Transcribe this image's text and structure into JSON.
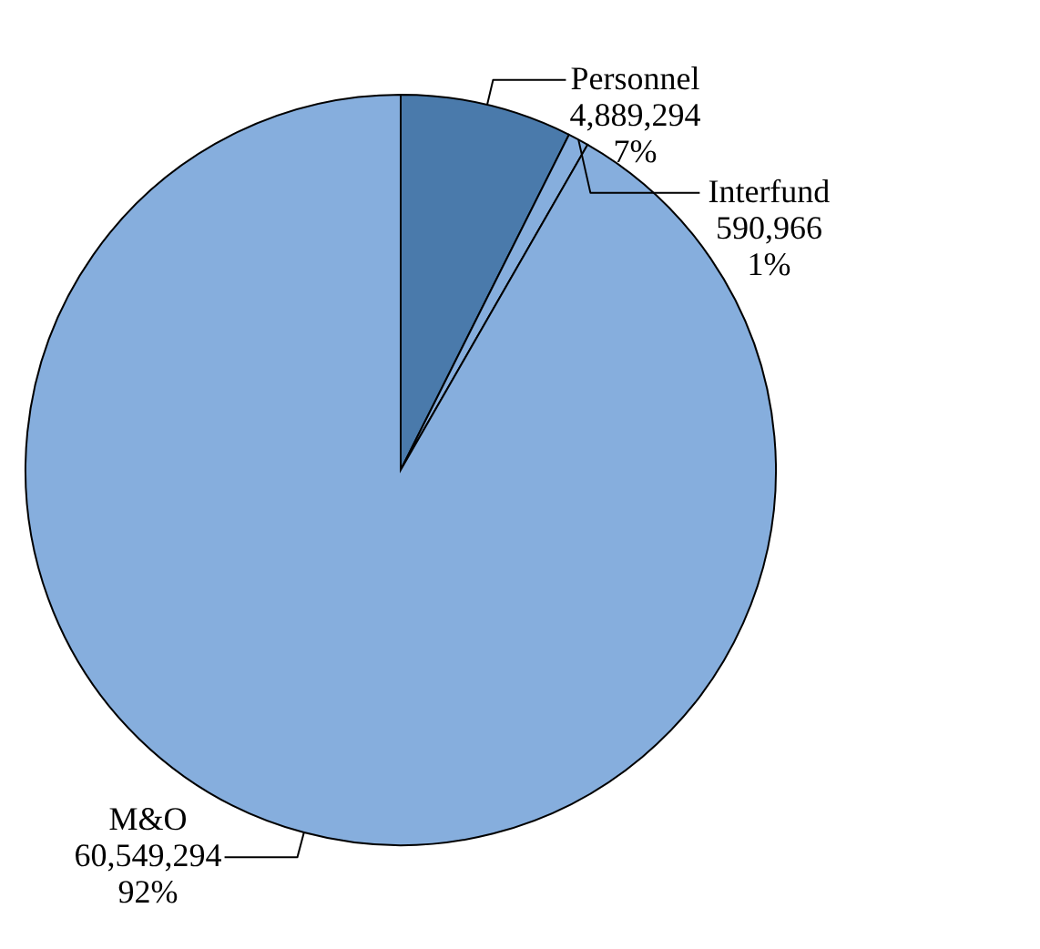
{
  "chart_data": {
    "type": "pie",
    "categories": [
      "Personnel",
      "Interfund",
      "M&O"
    ],
    "values": [
      4889294,
      590966,
      60549294
    ],
    "colors": [
      "#4a7aab",
      "#86aedd",
      "#86aedd"
    ],
    "value_labels": [
      "4,889,294\n7%",
      "590,966\n1%",
      "60,549,294\n92%"
    ]
  }
}
